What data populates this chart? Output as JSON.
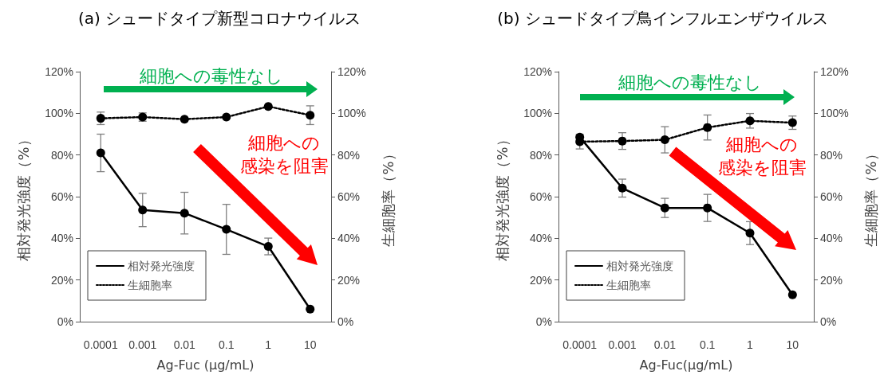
{
  "chart_data": [
    {
      "type": "line",
      "title": "(a) シュードタイプ新型コロナウイルス",
      "xlabel": "Ag-Fuc (µg/mL)",
      "ylabel": "相対発光強度（%）",
      "y2label": "生細胞率（%）",
      "categories": [
        "0.0001",
        "0.001",
        "0.01",
        "0.1",
        "1",
        "10"
      ],
      "series": [
        {
          "name": "相対発光強度",
          "color": "#000000",
          "line_style": "solid",
          "values": [
            81,
            53.6,
            52.1,
            44.3,
            36.1,
            6.0
          ],
          "errors": [
            9,
            8,
            10,
            12,
            4,
            null
          ]
        },
        {
          "name": "生細胞率",
          "color": "#000000",
          "line_style": "dotted",
          "axis": "y2",
          "values": [
            97.6,
            98.2,
            97.2,
            98.2,
            103.3,
            99.1
          ],
          "errors": [
            3,
            2,
            null,
            null,
            null,
            4.5
          ]
        }
      ],
      "marker": "circle",
      "ylim": [
        0,
        120
      ],
      "y2lim": [
        0,
        120
      ],
      "yticks": [
        {
          "value": 0,
          "label": "0%"
        },
        {
          "value": 20,
          "label": "20%"
        },
        {
          "value": 40,
          "label": "40%"
        },
        {
          "value": 60,
          "label": "60%"
        },
        {
          "value": 80,
          "label": "80%"
        },
        {
          "value": 100,
          "label": "100%"
        },
        {
          "value": 120,
          "label": "120%"
        }
      ],
      "y2ticks": [
        {
          "value": 0,
          "label": "0%"
        },
        {
          "value": 20,
          "label": "20%"
        },
        {
          "value": 40,
          "label": "40%"
        },
        {
          "value": 60,
          "label": "60%"
        },
        {
          "value": 80,
          "label": "80%"
        },
        {
          "value": 100,
          "label": "100%"
        },
        {
          "value": 120,
          "label": "120%"
        }
      ],
      "grid": false,
      "legend": "bottom left",
      "annotations": [
        "細胞への毒性なし",
        "細胞への",
        "感染を阻害"
      ]
    },
    {
      "type": "line",
      "title": "(b) シュードタイプ鳥インフルエンザウイルス",
      "xlabel": "Ag-Fuc(µg/mL)",
      "ylabel": "相対発光強度（%）",
      "y2label": "生細胞率（%）",
      "categories": [
        "0.0001",
        "0.001",
        "0.01",
        "0.1",
        "1",
        "10"
      ],
      "series": [
        {
          "name": "相対発光強度",
          "color": "#000000",
          "line_style": "solid",
          "values": [
            88.6,
            64.1,
            54.6,
            54.6,
            42.5,
            12.9
          ],
          "errors": [
            null,
            4.3,
            4.6,
            6.5,
            5.5,
            null
          ]
        },
        {
          "name": "生細胞率",
          "color": "#000000",
          "line_style": "dotted",
          "axis": "y2",
          "values": [
            86.4,
            86.7,
            87.3,
            93.2,
            96.4,
            95.5
          ],
          "errors": [
            3.5,
            4,
            6.3,
            6,
            3.5,
            3.2
          ]
        }
      ],
      "marker": "circle",
      "ylim": [
        0,
        120
      ],
      "y2lim": [
        0,
        120
      ],
      "yticks": [
        {
          "value": 0,
          "label": "0%"
        },
        {
          "value": 20,
          "label": "20%"
        },
        {
          "value": 40,
          "label": "40%"
        },
        {
          "value": 60,
          "label": "60%"
        },
        {
          "value": 80,
          "label": "80%"
        },
        {
          "value": 100,
          "label": "100%"
        },
        {
          "value": 120,
          "label": "120%"
        }
      ],
      "y2ticks": [
        {
          "value": 0,
          "label": "0%"
        },
        {
          "value": 20,
          "label": "20%"
        },
        {
          "value": 40,
          "label": "40%"
        },
        {
          "value": 60,
          "label": "60%"
        },
        {
          "value": 80,
          "label": "80%"
        },
        {
          "value": 100,
          "label": "100%"
        },
        {
          "value": 120,
          "label": "120%"
        }
      ],
      "grid": false,
      "legend": "bottom left",
      "annotations": [
        "細胞への毒性なし",
        "細胞への",
        "感染を阻害"
      ]
    }
  ]
}
